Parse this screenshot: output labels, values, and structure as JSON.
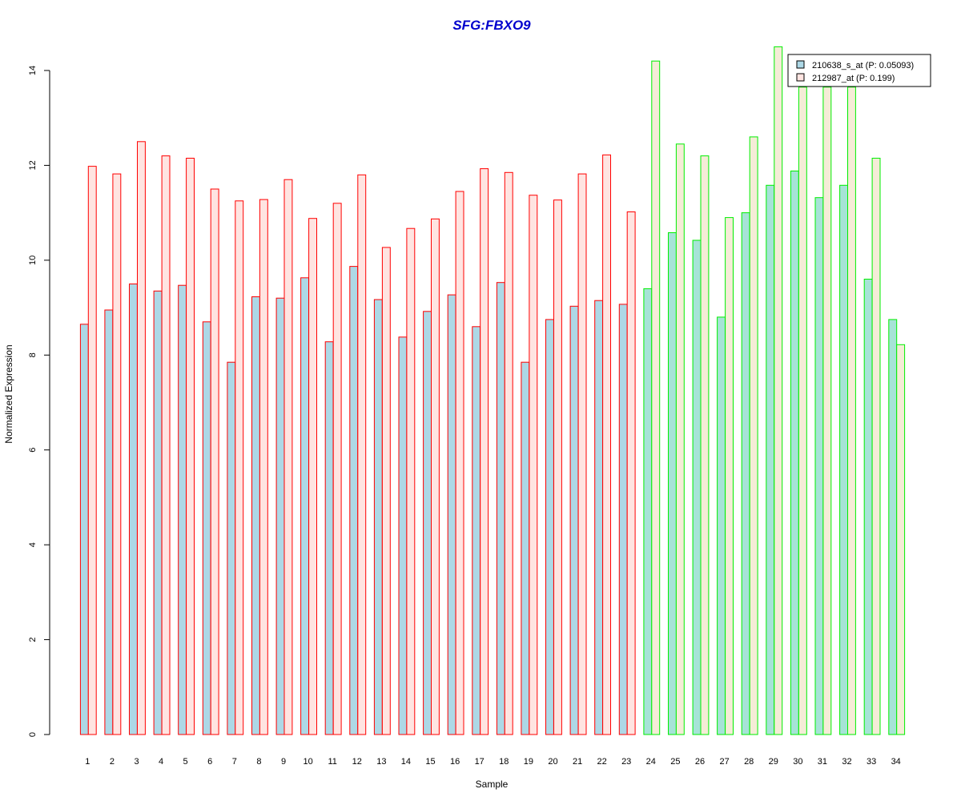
{
  "chart_data": {
    "type": "bar",
    "title": "SFG:FBXO9",
    "xlabel": "Sample",
    "ylabel": "Normalized Expression",
    "ylim": [
      0,
      14
    ],
    "yticks": [
      0,
      2,
      4,
      6,
      8,
      10,
      12,
      14
    ],
    "grid": false,
    "legend_position": "top-right",
    "categories": [
      "1",
      "2",
      "3",
      "4",
      "5",
      "6",
      "7",
      "8",
      "9",
      "10",
      "11",
      "12",
      "13",
      "14",
      "15",
      "16",
      "17",
      "18",
      "19",
      "20",
      "21",
      "22",
      "23",
      "24",
      "25",
      "26",
      "27",
      "28",
      "29",
      "30",
      "31",
      "32",
      "33",
      "34"
    ],
    "groups": [
      {
        "samples": [
          "1",
          "2",
          "3",
          "4",
          "5",
          "6",
          "7",
          "8",
          "9",
          "10",
          "11",
          "12",
          "13",
          "14",
          "15",
          "16",
          "17",
          "18",
          "19",
          "20",
          "21",
          "22",
          "23"
        ],
        "border_color": "#ff0000",
        "fill_series1": "#add8e6",
        "fill_series2": "#ffe4e1"
      },
      {
        "samples": [
          "24",
          "25",
          "26",
          "27",
          "28",
          "29",
          "30",
          "31",
          "32",
          "33",
          "34"
        ],
        "border_color": "#00ee00",
        "fill_series1": "#a6e3d7",
        "fill_series2": "#f5ecd7"
      }
    ],
    "series": [
      {
        "name": "210638_s_at (P: 0.05093)",
        "values": [
          8.65,
          8.95,
          9.5,
          9.35,
          9.47,
          8.7,
          7.85,
          9.23,
          9.2,
          9.63,
          8.28,
          9.87,
          9.17,
          8.38,
          8.92,
          9.27,
          8.6,
          9.53,
          7.85,
          8.75,
          9.03,
          9.15,
          9.07,
          9.4,
          10.58,
          10.42,
          8.8,
          11.0,
          11.58,
          11.88,
          11.32,
          11.58,
          9.6,
          8.75
        ]
      },
      {
        "name": "212987_at (P: 0.199)",
        "values": [
          11.98,
          11.82,
          12.5,
          12.2,
          12.15,
          11.5,
          11.25,
          11.28,
          11.7,
          10.88,
          11.2,
          11.8,
          10.27,
          10.67,
          10.87,
          11.45,
          11.93,
          11.85,
          11.37,
          11.27,
          11.82,
          12.22,
          11.02,
          14.2,
          12.45,
          12.2,
          10.9,
          12.6,
          14.5,
          13.65,
          13.65,
          13.65,
          12.15,
          8.22
        ]
      }
    ]
  },
  "colors": {
    "title": "#0000cd",
    "axis": "#000000",
    "legend_box_series1": "#add8e6",
    "legend_box_series2": "#ffe4e1"
  }
}
